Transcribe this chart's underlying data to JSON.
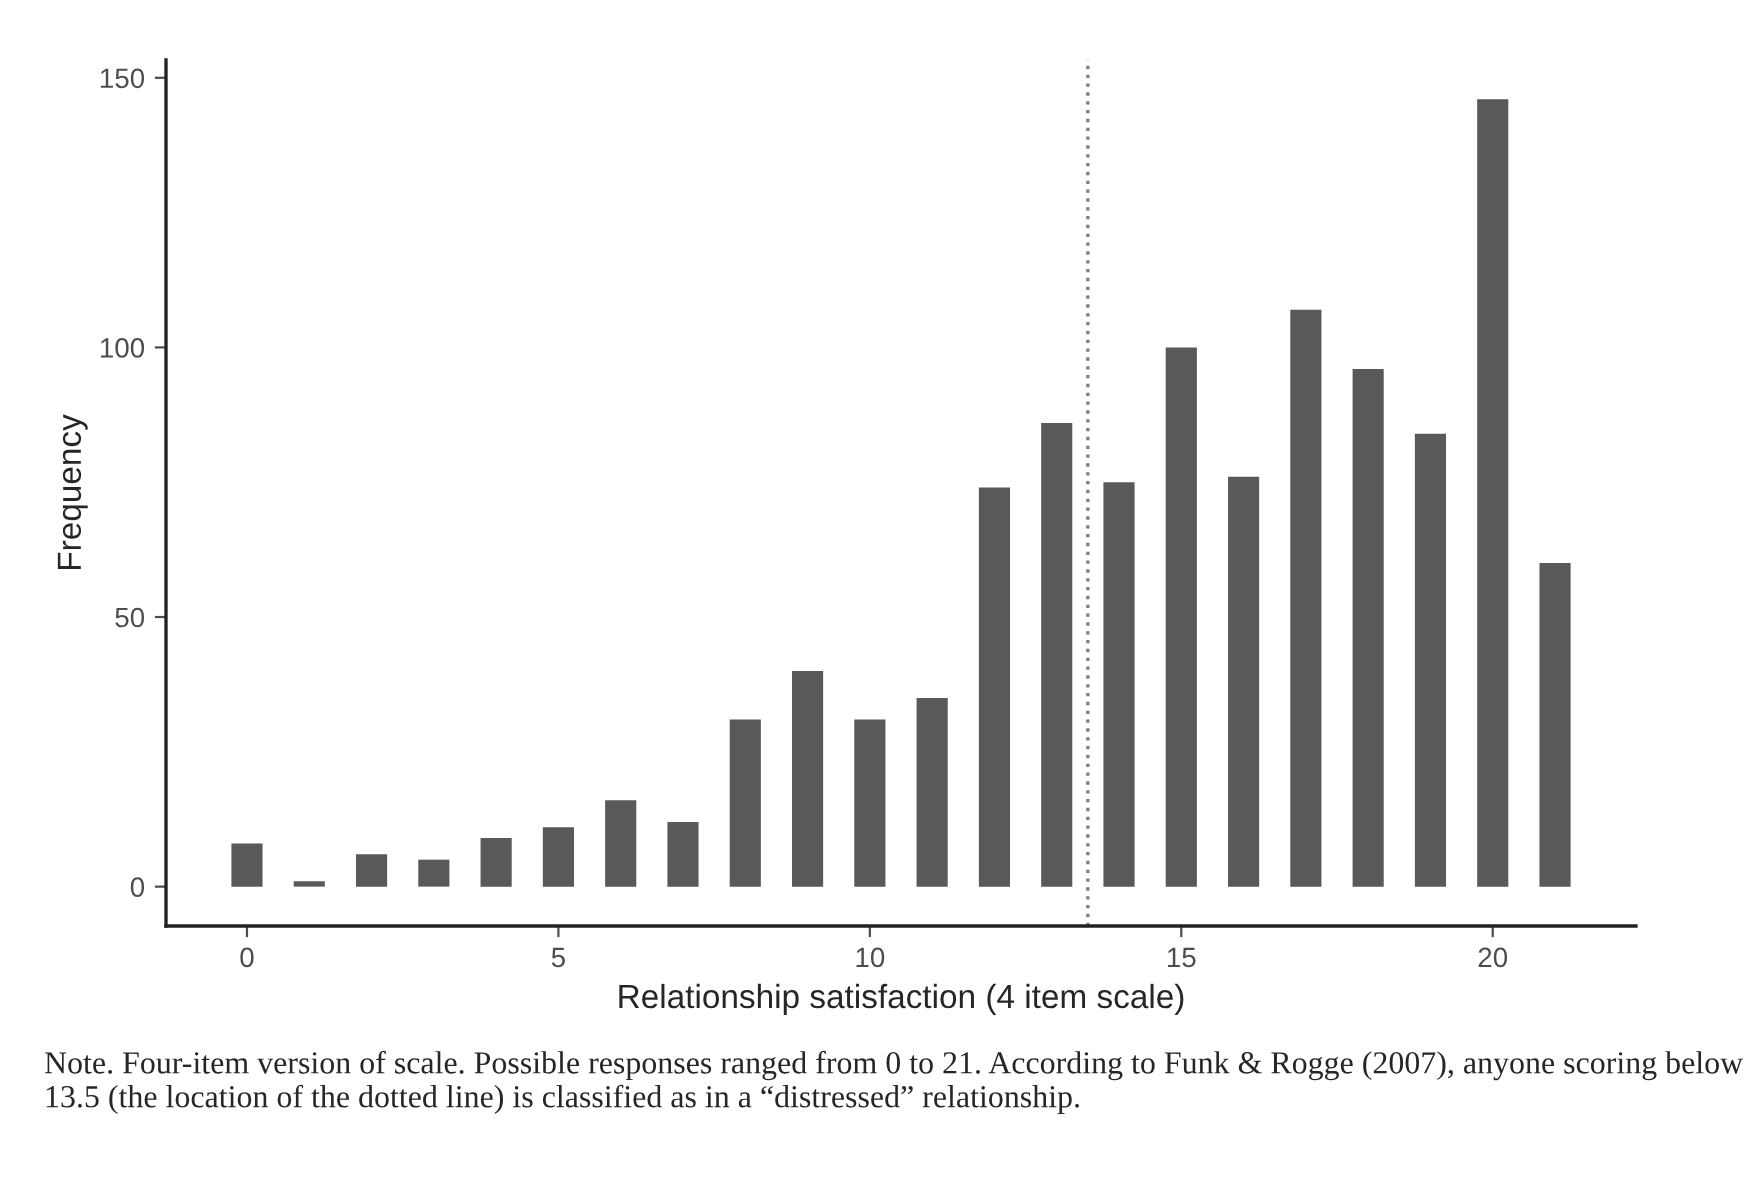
{
  "chart_data": {
    "type": "bar",
    "xlabel": "Relationship satisfaction (4 item scale)",
    "ylabel": "Frequency",
    "x": [
      0,
      1,
      2,
      3,
      4,
      5,
      6,
      7,
      8,
      9,
      10,
      11,
      12,
      13,
      14,
      15,
      16,
      17,
      18,
      19,
      20,
      21
    ],
    "values": [
      8,
      1,
      6,
      5,
      9,
      11,
      16,
      12,
      31,
      40,
      31,
      35,
      74,
      86,
      75,
      100,
      76,
      107,
      96,
      84,
      146,
      60
    ],
    "color": "#595959",
    "xlim": [
      -1.3,
      22.3
    ],
    "ylim": [
      -7.3,
      153.3
    ],
    "xticks": [
      0,
      5,
      10,
      15,
      20
    ],
    "yticks": [
      0,
      50,
      100,
      150
    ],
    "grid": false,
    "legend": false,
    "ref_lines": [
      {
        "axis": "x",
        "value": 13.5,
        "color": "#7f7f7f",
        "line_style": "dotted"
      }
    ],
    "annotations": [
      "Note. Four-item version of scale. Possible responses ranged from 0 to 21. According to Funk & Rogge (2007), anyone scoring below 13.5 (the location of the dotted line) is classified as in a “distressed” relationship."
    ]
  }
}
